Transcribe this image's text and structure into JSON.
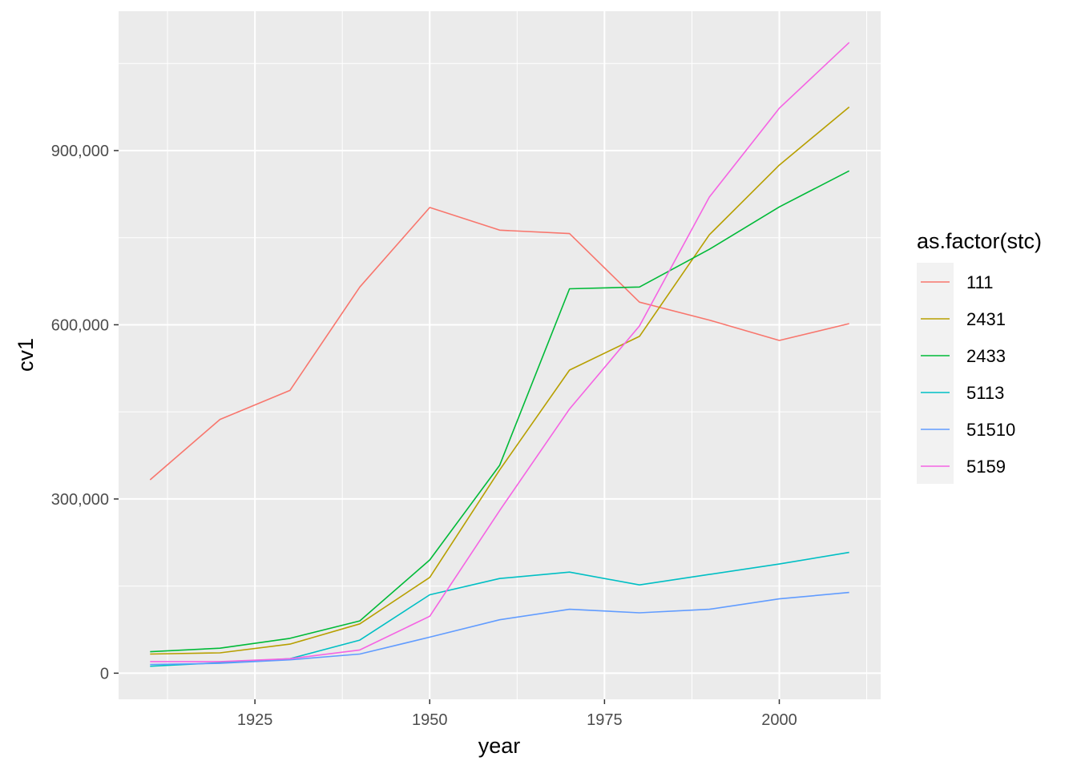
{
  "chart_data": {
    "type": "line",
    "xlabel": "year",
    "ylabel": "cv1",
    "xlim": [
      1905.5,
      2014.5
    ],
    "ylim": [
      -45000,
      1140000
    ],
    "x_ticks": [
      1925,
      1950,
      1975,
      2000
    ],
    "x_tick_labels": [
      "1925",
      "1950",
      "1975",
      "2000"
    ],
    "y_ticks": [
      0,
      300000,
      600000,
      900000
    ],
    "y_tick_labels": [
      "0",
      "300,000",
      "600,000",
      "900,000"
    ],
    "grid": true,
    "legend_position": "right",
    "legend_title": "as.factor(stc)",
    "x": [
      1910,
      1920,
      1930,
      1940,
      1950,
      1960,
      1970,
      1980,
      1990,
      2000,
      2010
    ],
    "series": [
      {
        "name": "111",
        "color": "#F8766D",
        "values": [
          333000,
          437000,
          487000,
          665000,
          802000,
          763000,
          757000,
          639000,
          608000,
          573000,
          602000
        ]
      },
      {
        "name": "2431",
        "color": "#B79F00",
        "values": [
          33000,
          35000,
          50000,
          85000,
          165000,
          350000,
          522000,
          580000,
          755000,
          875000,
          975000
        ]
      },
      {
        "name": "2433",
        "color": "#00BA38",
        "values": [
          37000,
          43000,
          60000,
          90000,
          195000,
          358000,
          662000,
          665000,
          730000,
          803000,
          865000
        ]
      },
      {
        "name": "5113",
        "color": "#00BFC4",
        "values": [
          12000,
          18000,
          25000,
          57000,
          135000,
          163000,
          174000,
          152000,
          170000,
          188000,
          208000
        ]
      },
      {
        "name": "51510",
        "color": "#619CFF",
        "values": [
          15000,
          17000,
          23000,
          33000,
          62000,
          92000,
          110000,
          104000,
          110000,
          128000,
          139000
        ]
      },
      {
        "name": "5159",
        "color": "#F564E3",
        "values": [
          20000,
          20000,
          25000,
          40000,
          98000,
          280000,
          455000,
          598000,
          820000,
          973000,
          1086000
        ]
      }
    ]
  }
}
